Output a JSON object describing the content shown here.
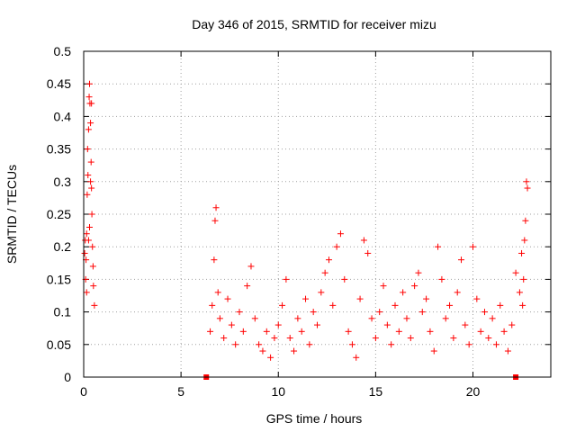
{
  "chart_data": {
    "type": "scatter",
    "title": "Day 346 of 2015, SRMTID for receiver mizu",
    "xlabel": "GPS time / hours",
    "ylabel": "SRMTID / TECUs",
    "xlim": [
      0,
      24
    ],
    "ylim": [
      0,
      0.5
    ],
    "xticks": [
      0,
      5,
      10,
      15,
      20
    ],
    "yticks": [
      0,
      0.05,
      0.1,
      0.15,
      0.2,
      0.25,
      0.3,
      0.35,
      0.4,
      0.45,
      0.5
    ],
    "grid": true,
    "marker": "+",
    "color": "#ff0000",
    "series": [
      {
        "name": "SRMTID",
        "points": [
          [
            0.05,
            0.19
          ],
          [
            0.08,
            0.21
          ],
          [
            0.1,
            0.15
          ],
          [
            0.12,
            0.18
          ],
          [
            0.15,
            0.22
          ],
          [
            0.18,
            0.28
          ],
          [
            0.2,
            0.35
          ],
          [
            0.22,
            0.31
          ],
          [
            0.25,
            0.38
          ],
          [
            0.28,
            0.43
          ],
          [
            0.3,
            0.45
          ],
          [
            0.32,
            0.42
          ],
          [
            0.35,
            0.39
          ],
          [
            0.38,
            0.33
          ],
          [
            0.4,
            0.29
          ],
          [
            0.42,
            0.25
          ],
          [
            0.45,
            0.2
          ],
          [
            0.48,
            0.17
          ],
          [
            0.5,
            0.14
          ],
          [
            0.55,
            0.11
          ],
          [
            0.3,
            0.23
          ],
          [
            0.25,
            0.21
          ],
          [
            0.15,
            0.13
          ],
          [
            0.35,
            0.3
          ],
          [
            0.4,
            0.42
          ],
          [
            6.5,
            0.07
          ],
          [
            6.6,
            0.11
          ],
          [
            6.7,
            0.18
          ],
          [
            6.75,
            0.24
          ],
          [
            6.8,
            0.26
          ],
          [
            6.9,
            0.13
          ],
          [
            7.0,
            0.09
          ],
          [
            7.2,
            0.06
          ],
          [
            7.4,
            0.12
          ],
          [
            7.6,
            0.08
          ],
          [
            7.8,
            0.05
          ],
          [
            8.0,
            0.1
          ],
          [
            8.2,
            0.07
          ],
          [
            8.4,
            0.14
          ],
          [
            8.6,
            0.17
          ],
          [
            8.8,
            0.09
          ],
          [
            9.0,
            0.05
          ],
          [
            9.2,
            0.04
          ],
          [
            9.4,
            0.07
          ],
          [
            9.6,
            0.03
          ],
          [
            9.8,
            0.06
          ],
          [
            10.0,
            0.08
          ],
          [
            10.2,
            0.11
          ],
          [
            10.4,
            0.15
          ],
          [
            10.6,
            0.06
          ],
          [
            10.8,
            0.04
          ],
          [
            11.0,
            0.09
          ],
          [
            11.2,
            0.07
          ],
          [
            11.4,
            0.12
          ],
          [
            11.6,
            0.05
          ],
          [
            11.8,
            0.1
          ],
          [
            12.0,
            0.08
          ],
          [
            12.2,
            0.13
          ],
          [
            12.4,
            0.16
          ],
          [
            12.6,
            0.18
          ],
          [
            12.8,
            0.11
          ],
          [
            13.0,
            0.2
          ],
          [
            13.2,
            0.22
          ],
          [
            13.4,
            0.15
          ],
          [
            13.6,
            0.07
          ],
          [
            13.8,
            0.05
          ],
          [
            14.0,
            0.03
          ],
          [
            14.2,
            0.12
          ],
          [
            14.4,
            0.21
          ],
          [
            14.6,
            0.19
          ],
          [
            14.8,
            0.09
          ],
          [
            15.0,
            0.06
          ],
          [
            15.2,
            0.1
          ],
          [
            15.4,
            0.14
          ],
          [
            15.6,
            0.08
          ],
          [
            15.8,
            0.05
          ],
          [
            16.0,
            0.11
          ],
          [
            16.2,
            0.07
          ],
          [
            16.4,
            0.13
          ],
          [
            16.6,
            0.09
          ],
          [
            16.8,
            0.06
          ],
          [
            17.0,
            0.14
          ],
          [
            17.2,
            0.16
          ],
          [
            17.4,
            0.1
          ],
          [
            17.6,
            0.12
          ],
          [
            17.8,
            0.07
          ],
          [
            18.0,
            0.04
          ],
          [
            18.2,
            0.2
          ],
          [
            18.4,
            0.15
          ],
          [
            18.6,
            0.09
          ],
          [
            18.8,
            0.11
          ],
          [
            19.0,
            0.06
          ],
          [
            19.2,
            0.13
          ],
          [
            19.4,
            0.18
          ],
          [
            19.6,
            0.08
          ],
          [
            19.8,
            0.05
          ],
          [
            20.0,
            0.2
          ],
          [
            20.2,
            0.12
          ],
          [
            20.4,
            0.07
          ],
          [
            20.6,
            0.1
          ],
          [
            20.8,
            0.06
          ],
          [
            21.0,
            0.09
          ],
          [
            21.2,
            0.05
          ],
          [
            21.4,
            0.11
          ],
          [
            21.6,
            0.07
          ],
          [
            21.8,
            0.04
          ],
          [
            22.0,
            0.08
          ],
          [
            22.2,
            0.16
          ],
          [
            22.4,
            0.13
          ],
          [
            22.5,
            0.19
          ],
          [
            22.6,
            0.15
          ],
          [
            22.7,
            0.24
          ],
          [
            22.8,
            0.29
          ],
          [
            22.75,
            0.3
          ],
          [
            22.65,
            0.21
          ],
          [
            22.55,
            0.11
          ]
        ]
      }
    ],
    "gap_markers_x": [
      6.3,
      22.2
    ]
  }
}
